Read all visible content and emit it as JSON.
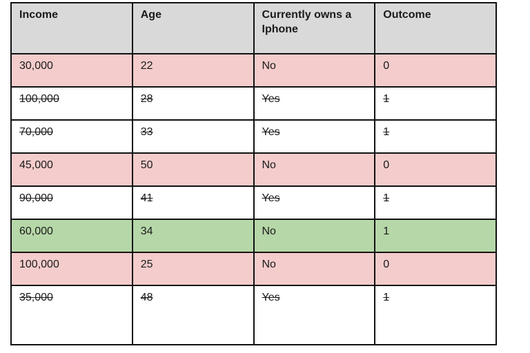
{
  "table": {
    "columns": [
      "Income",
      "Age",
      "Currently owns a Iphone",
      "Outcome"
    ],
    "rows": [
      {
        "cells": [
          "30,000",
          "22",
          "No",
          "0"
        ],
        "bg": "pink",
        "struck": false
      },
      {
        "cells": [
          "100,000",
          "28",
          "Yes",
          "1"
        ],
        "bg": "white",
        "struck": true
      },
      {
        "cells": [
          "70,000",
          "33",
          "Yes",
          "1"
        ],
        "bg": "white",
        "struck": true
      },
      {
        "cells": [
          "45,000",
          "50",
          "No",
          "0"
        ],
        "bg": "pink",
        "struck": false
      },
      {
        "cells": [
          "90,000",
          "41",
          "Yes",
          "1"
        ],
        "bg": "white",
        "struck": true
      },
      {
        "cells": [
          "60,000",
          "34",
          "No",
          "1"
        ],
        "bg": "green",
        "struck": false
      },
      {
        "cells": [
          "100,000",
          "25",
          "No",
          "0"
        ],
        "bg": "pink",
        "struck": false
      },
      {
        "cells": [
          "35,000",
          "48",
          "Yes",
          "1"
        ],
        "bg": "white",
        "struck": true
      }
    ],
    "colors": {
      "header": "#d9d9d9",
      "pink": "#f4cccc",
      "green": "#b6d7a8",
      "white": "#ffffff",
      "border": "#111111"
    }
  }
}
